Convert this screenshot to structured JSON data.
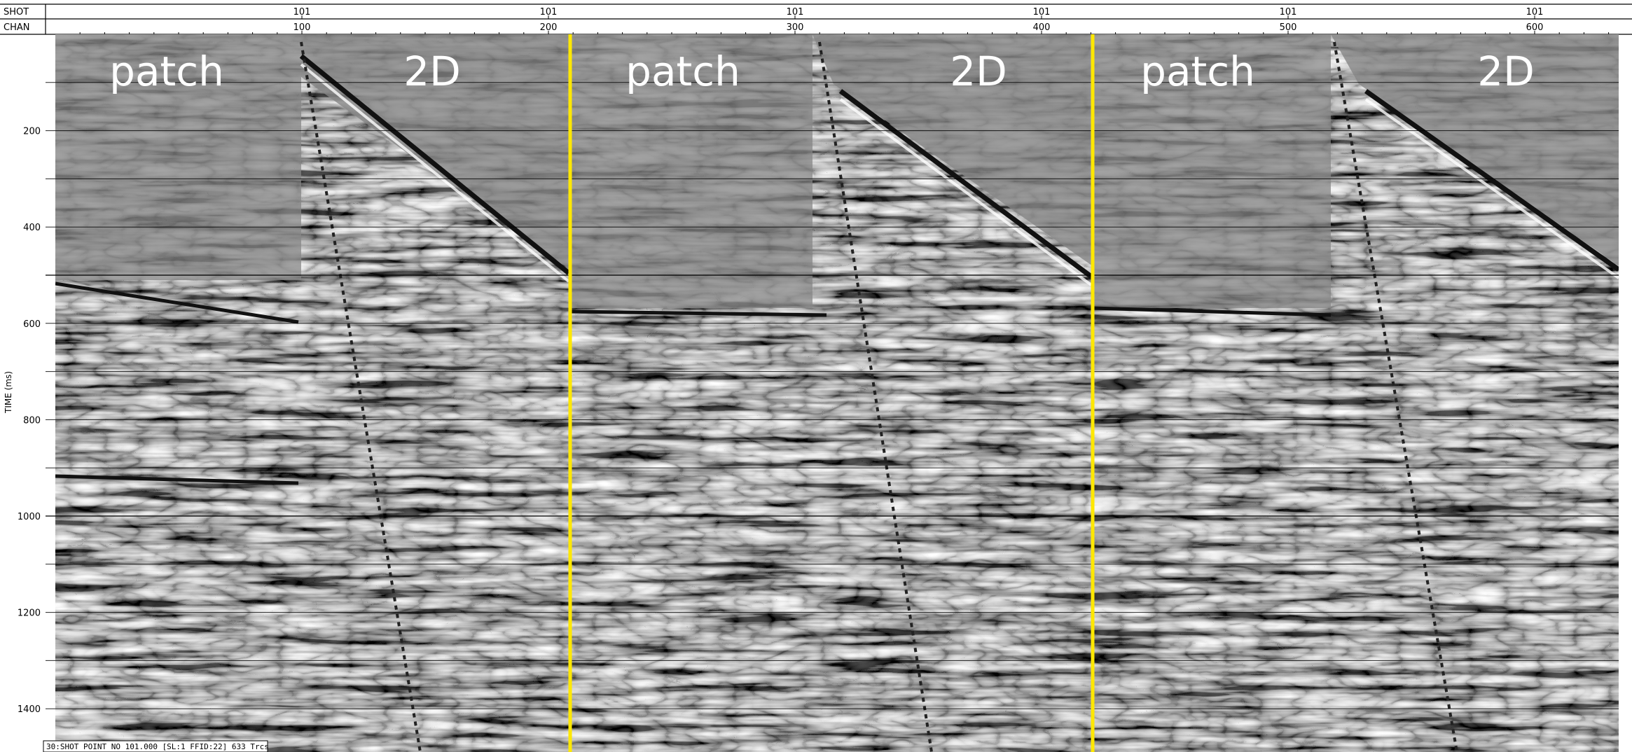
{
  "header": {
    "rows": [
      {
        "label": "SHOT",
        "ticks": [
          "101",
          "101",
          "101",
          "101",
          "101",
          "101"
        ]
      },
      {
        "label": "CHAN",
        "ticks": [
          "100",
          "200",
          "300",
          "400",
          "500",
          "600"
        ]
      }
    ]
  },
  "time_axis": {
    "label": "TIME (ms)",
    "ticks": [
      "200",
      "400",
      "600",
      "800",
      "1000",
      "1200",
      "1400"
    ]
  },
  "panels": [
    "patch",
    "2D",
    "patch",
    "2D",
    "patch",
    "2D"
  ],
  "status": "30:SHOT POINT NO 101.000 [SL:1 FFID:22] 633 Trcs"
}
